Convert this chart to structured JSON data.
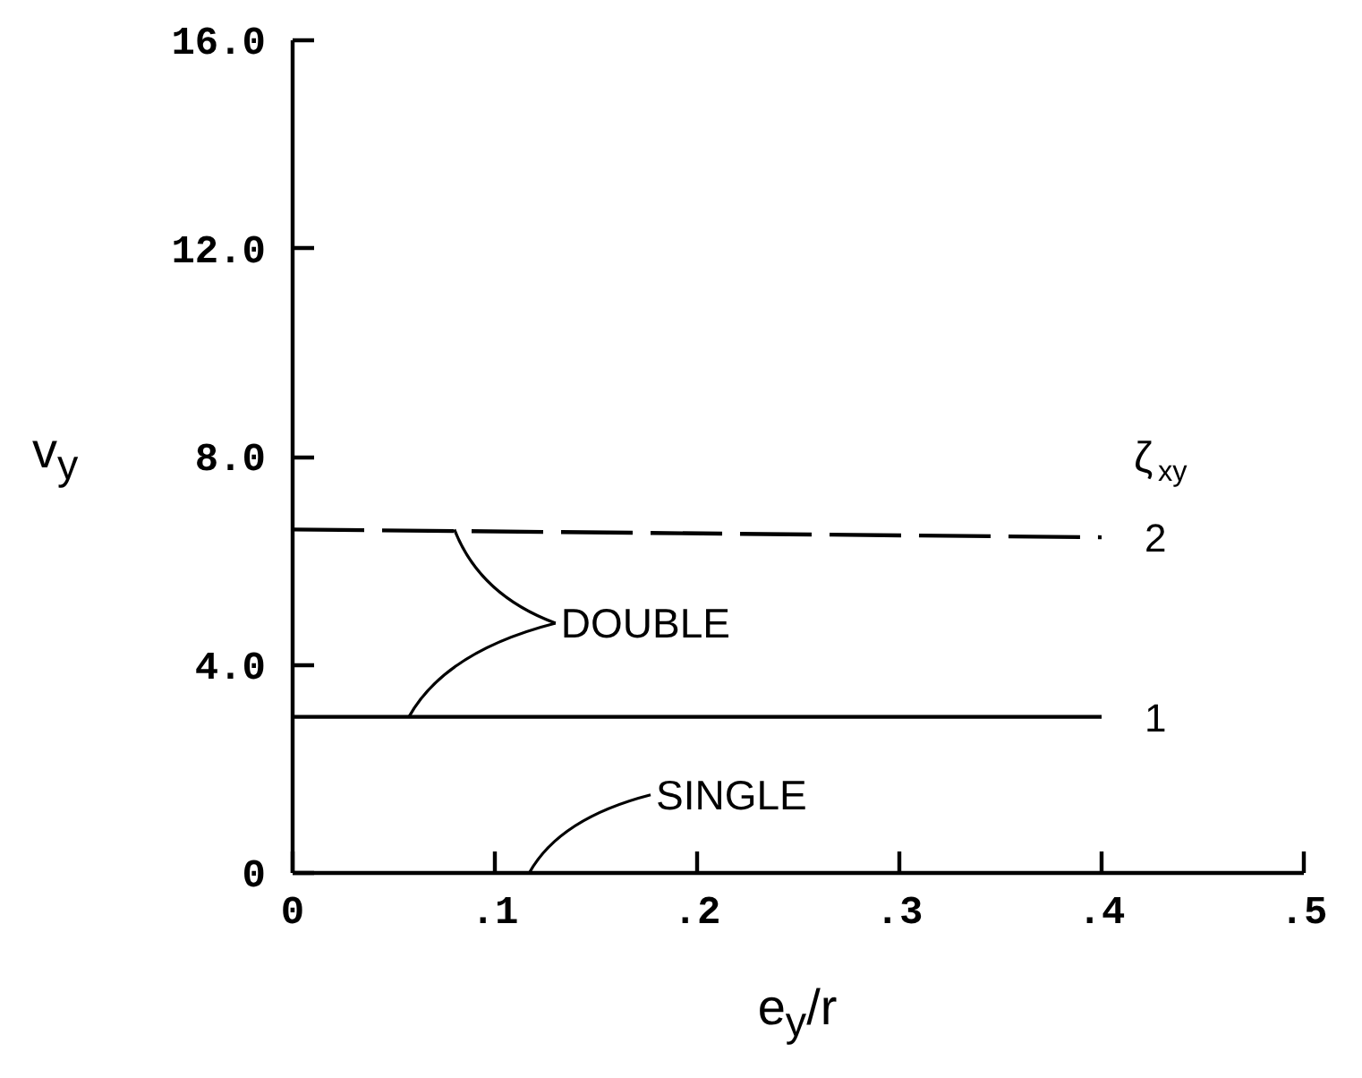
{
  "chart_data": {
    "type": "line",
    "xlabel": "e$_{y}$/r",
    "ylabel": "v$_{y}$",
    "legend_title": "ζ$_{xy}$",
    "xlim": [
      0,
      0.5
    ],
    "ylim": [
      0,
      16
    ],
    "xticks": [
      0,
      {
        "value": 0.1,
        "label": ".1"
      },
      {
        "value": 0.2,
        "label": ".2"
      },
      {
        "value": 0.3,
        "label": ".3"
      },
      {
        "value": 0.4,
        "label": ".4"
      },
      {
        "value": 0.5,
        "label": ".5"
      }
    ],
    "yticks": [
      0,
      {
        "value": 4,
        "label": "4.0"
      },
      {
        "value": 8,
        "label": "8.0"
      },
      {
        "value": 12,
        "label": "12.0"
      },
      {
        "value": 16,
        "label": "16.0"
      }
    ],
    "x": [
      0,
      0.4
    ],
    "series": [
      {
        "name": "1",
        "color": "#000000",
        "line_style": "solid",
        "values": [
          3.0,
          3.0
        ]
      },
      {
        "name": "2",
        "color": "#000000",
        "line_style": "dashed",
        "values": [
          6.6,
          6.45
        ]
      }
    ],
    "annotations": [
      {
        "text": "DOUBLE",
        "x": 0.08,
        "y": 6.6
      },
      "SINGLE"
    ]
  }
}
